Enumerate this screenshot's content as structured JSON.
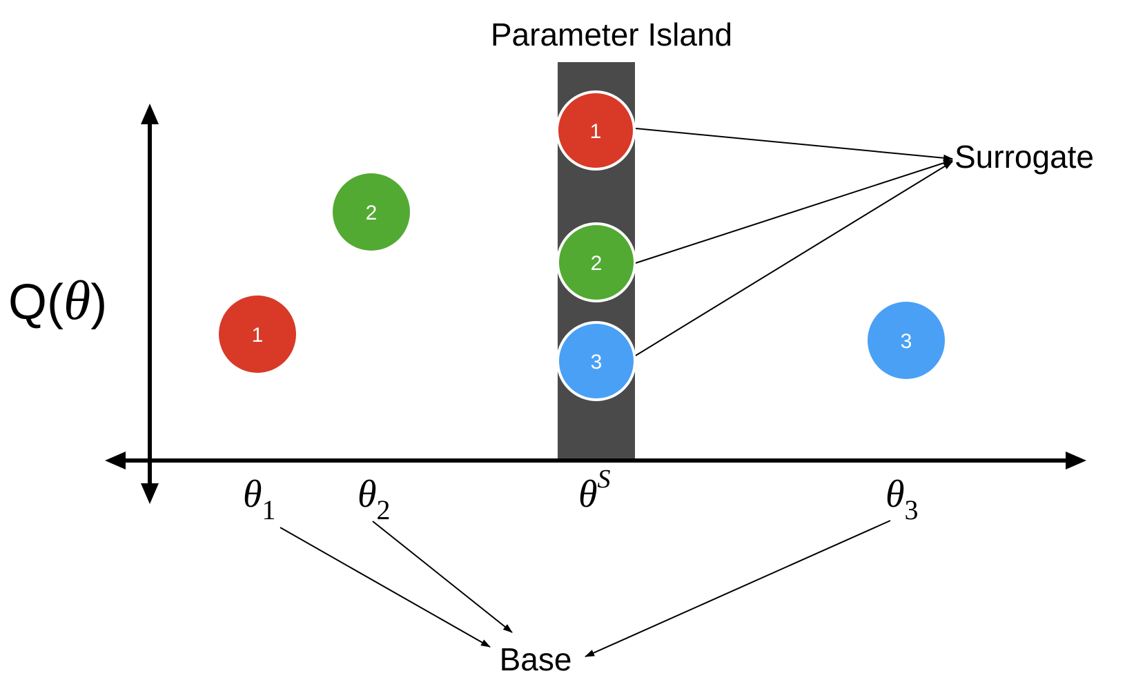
{
  "title": "Parameter Island",
  "y_axis_label": {
    "prefix": "Q(",
    "symbol": "θ",
    "suffix": ")"
  },
  "x_ticks": [
    {
      "symbol": "θ",
      "index": "1"
    },
    {
      "symbol": "θ",
      "index": "2"
    },
    {
      "symbol": "θ",
      "sup": "S"
    },
    {
      "symbol": "θ",
      "index": "3"
    }
  ],
  "base_points": [
    {
      "label": "1",
      "color": "#d83a27"
    },
    {
      "label": "2",
      "color": "#52aa33"
    },
    {
      "label": "3",
      "color": "#4aa0f5"
    }
  ],
  "island_points": [
    {
      "label": "1",
      "color": "#d83a27"
    },
    {
      "label": "2",
      "color": "#52aa33"
    },
    {
      "label": "3",
      "color": "#4aa0f5"
    }
  ],
  "surrogate_label": "Surrogate",
  "base_label": "Base",
  "colors": {
    "island": "#4a4a4a",
    "axis": "#000000",
    "point_text": "#ffffff"
  }
}
